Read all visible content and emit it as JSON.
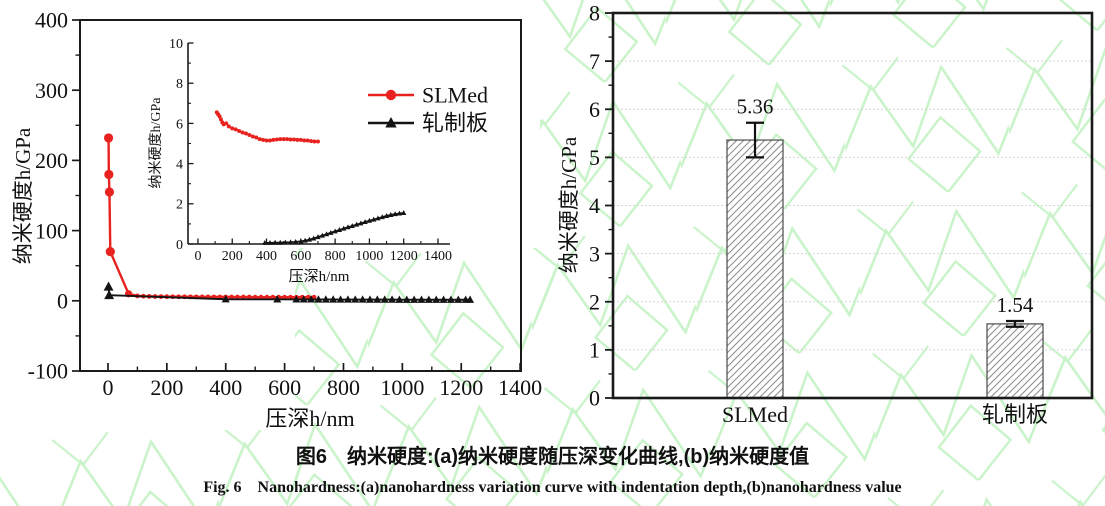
{
  "figure": {
    "caption_zh": "图6　纳米硬度:(a)纳米硬度随压深变化曲线,(b)纳米硬度值",
    "caption_en": "Fig. 6　Nanohardness:(a)nanohardness variation curve with indentation depth,(b)nanohardness value"
  },
  "colors": {
    "slmed": "#e8231f",
    "rolled": "#141414",
    "frame": "#1a1a1a",
    "grid": "#d6d6d6",
    "hatch": "#8f8f8f",
    "bar_outline": "#4a4a4a",
    "watermark": "#c9f3c9"
  },
  "chart_data": [
    {
      "type": "line",
      "panel": "a",
      "xlabel": "压深h/nm",
      "ylabel": "纳米硬度h/GPa",
      "xlim": [
        -95,
        1403
      ],
      "ylim": [
        -100,
        400
      ],
      "xticks": [
        0,
        200,
        400,
        600,
        800,
        1000,
        1200,
        1400
      ],
      "yticks": [
        -100,
        0,
        100,
        200,
        300,
        400
      ],
      "x_minor_step": 100,
      "y_minor_step": 50,
      "legend": [
        {
          "label": "SLMed",
          "marker": "circle",
          "color": "#e8231f"
        },
        {
          "label": "轧制板",
          "marker": "triangle",
          "color": "#141414"
        }
      ],
      "series": [
        {
          "name": "SLMed",
          "marker": "circle",
          "color": "#e8231f",
          "x": [
            2,
            3,
            5,
            8,
            70,
            100,
            120,
            140,
            160,
            180,
            200,
            220,
            240,
            260,
            280,
            300,
            320,
            340,
            360,
            380,
            400,
            420,
            440,
            460,
            480,
            500,
            520,
            540,
            560,
            580,
            600,
            620,
            640,
            660,
            680,
            700
          ],
          "y": [
            232,
            180,
            155,
            70,
            10,
            7,
            6.5,
            6.3,
            6.1,
            6.0,
            5.9,
            5.8,
            5.7,
            5.7,
            5.6,
            5.6,
            5.5,
            5.5,
            5.4,
            5.4,
            5.4,
            5.3,
            5.3,
            5.3,
            5.3,
            5.2,
            5.2,
            5.2,
            5.2,
            5.2,
            5.1,
            5.1,
            5.1,
            5.1,
            5.1,
            5.1
          ]
        },
        {
          "name": "轧制板",
          "marker": "triangle",
          "color": "#141414",
          "x": [
            2,
            4,
            400,
            575,
            640,
            665,
            690,
            715,
            740,
            765,
            790,
            815,
            840,
            865,
            890,
            915,
            940,
            965,
            990,
            1015,
            1040,
            1065,
            1090,
            1115,
            1140,
            1165,
            1190,
            1215,
            1230
          ],
          "y": [
            20,
            8,
            2.2,
            2.1,
            2.0,
            2.0,
            2.0,
            1.9,
            1.9,
            1.9,
            1.8,
            1.8,
            1.8,
            1.8,
            1.7,
            1.7,
            1.7,
            1.7,
            1.6,
            1.6,
            1.6,
            1.6,
            1.5,
            1.5,
            1.5,
            1.5,
            1.5,
            1.5,
            1.5
          ]
        }
      ],
      "inset": {
        "xlabel": "压深h/nm",
        "ylabel": "纳米硬度h/GPa",
        "xlim": [
          -58,
          1470
        ],
        "ylim": [
          0,
          10
        ],
        "xticks": [
          0,
          200,
          400,
          600,
          800,
          1000,
          1200,
          1400
        ],
        "yticks": [
          0,
          2,
          4,
          6,
          8,
          10
        ],
        "x_minor_step": 100,
        "y_minor_step": 1,
        "series": [
          {
            "name": "SLMed",
            "marker": "circle",
            "color": "#e8231f",
            "x": [
              110,
              118,
              126,
              134,
              142,
              150,
              165,
              180,
              200,
              220,
              240,
              260,
              280,
              300,
              320,
              340,
              360,
              380,
              400,
              420,
              440,
              460,
              480,
              500,
              520,
              540,
              560,
              580,
              600,
              620,
              640,
              660,
              680,
              700
            ],
            "y": [
              6.55,
              6.45,
              6.35,
              6.2,
              6.05,
              5.95,
              6.0,
              5.85,
              5.75,
              5.7,
              5.62,
              5.55,
              5.5,
              5.42,
              5.35,
              5.3,
              5.22,
              5.18,
              5.15,
              5.15,
              5.18,
              5.2,
              5.22,
              5.22,
              5.22,
              5.2,
              5.2,
              5.18,
              5.18,
              5.15,
              5.15,
              5.12,
              5.1,
              5.1
            ]
          },
          {
            "name": "轧制板",
            "marker": "triangle",
            "color": "#141414",
            "x": [
              390,
              420,
              450,
              480,
              510,
              540,
              570,
              600,
              625,
              650,
              675,
              700,
              725,
              750,
              775,
              800,
              825,
              850,
              875,
              900,
              925,
              950,
              975,
              1000,
              1025,
              1050,
              1075,
              1100,
              1125,
              1150,
              1175,
              1200
            ],
            "y": [
              0.06,
              0.06,
              0.07,
              0.07,
              0.08,
              0.09,
              0.11,
              0.13,
              0.17,
              0.22,
              0.28,
              0.35,
              0.42,
              0.49,
              0.56,
              0.63,
              0.7,
              0.77,
              0.84,
              0.9,
              0.97,
              1.03,
              1.1,
              1.16,
              1.22,
              1.28,
              1.34,
              1.4,
              1.45,
              1.49,
              1.52,
              1.55
            ]
          }
        ]
      }
    },
    {
      "type": "bar",
      "panel": "b",
      "categories": [
        "SLMed",
        "轧制板"
      ],
      "values": [
        5.36,
        1.54
      ],
      "errors": [
        0.36,
        0.06
      ],
      "value_labels": [
        "5.36",
        "1.54"
      ],
      "ylabel": "纳米硬度h/GPa",
      "ylim": [
        0,
        8
      ],
      "yticks": [
        0,
        1,
        2,
        3,
        4,
        5,
        6,
        7,
        8
      ],
      "y_minor_step": 0.5,
      "grid": true
    }
  ]
}
